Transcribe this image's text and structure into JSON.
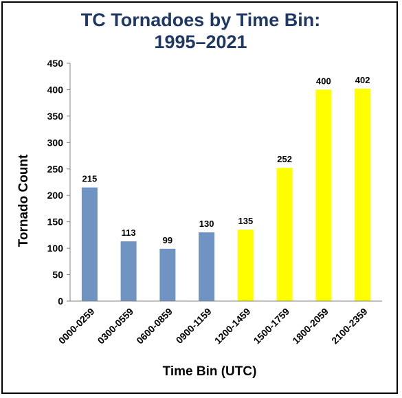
{
  "chart_data": {
    "type": "bar",
    "title_lines": [
      "TC Tornadoes by Time Bin:",
      "1995–2021"
    ],
    "xlabel": "Time Bin (UTC)",
    "ylabel": "Tornado Count",
    "ylim": [
      0,
      450
    ],
    "yticks": [
      "0",
      "50",
      "100",
      "150",
      "200",
      "250",
      "300",
      "350",
      "400",
      "450"
    ],
    "ytick_values": [
      0,
      50,
      100,
      150,
      200,
      250,
      300,
      350,
      400,
      450
    ],
    "categories": [
      "0000-0259",
      "0300-0559",
      "0600-0859",
      "0900-1159",
      "1200-1459",
      "1500-1759",
      "1800-2059",
      "2100-2359"
    ],
    "values": [
      215,
      113,
      99,
      130,
      135,
      252,
      400,
      402
    ],
    "value_labels": [
      "215",
      "113",
      "99",
      "130",
      "135",
      "252",
      "400",
      "402"
    ],
    "bar_colors": [
      "#7094c2",
      "#7094c2",
      "#7094c2",
      "#7094c2",
      "#ffff00",
      "#ffff00",
      "#ffff00",
      "#ffff00"
    ],
    "grid": false,
    "legend": "none"
  }
}
